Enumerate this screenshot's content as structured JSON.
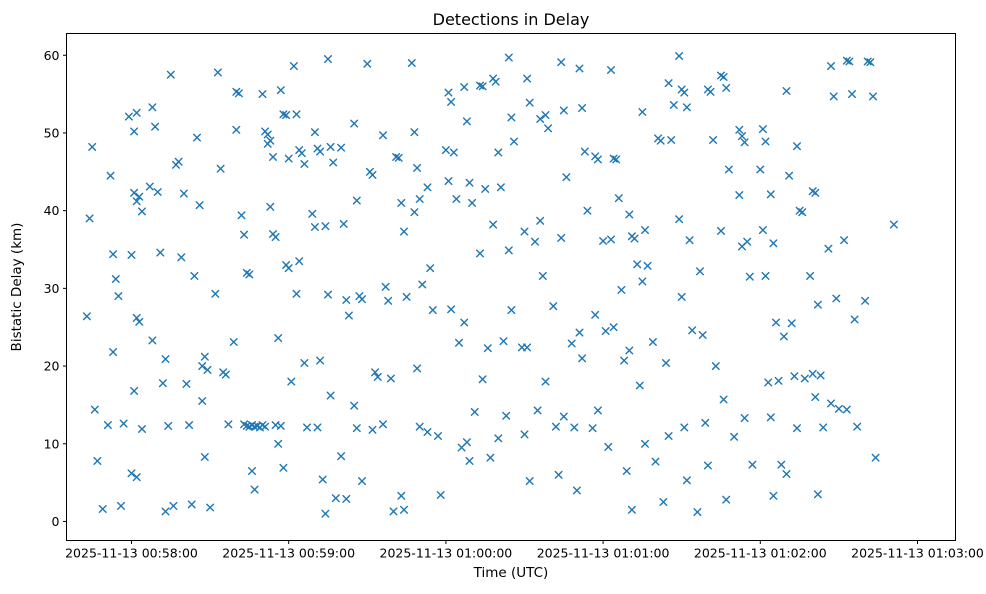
{
  "chart_data": {
    "type": "scatter",
    "title": "Detections in Delay",
    "xlabel": "Time (UTC)",
    "ylabel": "Bistatic Delay (km)",
    "marker": "x",
    "marker_color": "#1f77b4",
    "grid": false,
    "legend": "none",
    "x_unit": "seconds after 2025-11-13 00:58:00 UTC",
    "x_range_seconds": [
      -24.8,
      314.5
    ],
    "y_range": [
      -2.45,
      62.8
    ],
    "x_ticks": [
      {
        "t": 0,
        "label": "2025-11-13 00:58:00"
      },
      {
        "t": 60,
        "label": "2025-11-13 00:59:00"
      },
      {
        "t": 120,
        "label": "2025-11-13 01:00:00"
      },
      {
        "t": 180,
        "label": "2025-11-13 01:01:00"
      },
      {
        "t": 240,
        "label": "2025-11-13 01:02:00"
      },
      {
        "t": 300,
        "label": "2025-11-13 01:03:00"
      }
    ],
    "y_ticks": [
      0,
      10,
      20,
      30,
      40,
      50,
      60
    ],
    "points": [
      [
        -15,
        48.2
      ],
      [
        -16,
        39.0
      ],
      [
        -17,
        26.4
      ],
      [
        -14,
        14.4
      ],
      [
        -13,
        7.8
      ],
      [
        -11,
        1.6
      ],
      [
        -8,
        44.5
      ],
      [
        -7,
        34.4
      ],
      [
        -6,
        31.2
      ],
      [
        -5,
        29.0
      ],
      [
        -7,
        21.8
      ],
      [
        -9,
        12.4
      ],
      [
        -3,
        12.6
      ],
      [
        -4,
        2.0
      ],
      [
        -1,
        52.1
      ],
      [
        1,
        50.2
      ],
      [
        2,
        52.6
      ],
      [
        1,
        42.3
      ],
      [
        3,
        41.8
      ],
      [
        2,
        41.2
      ],
      [
        4,
        39.9
      ],
      [
        0,
        34.3
      ],
      [
        2,
        26.2
      ],
      [
        3,
        25.7
      ],
      [
        1,
        16.8
      ],
      [
        4,
        11.9
      ],
      [
        0,
        6.2
      ],
      [
        2,
        5.7
      ],
      [
        8,
        53.3
      ],
      [
        9,
        50.8
      ],
      [
        7,
        43.1
      ],
      [
        10,
        42.4
      ],
      [
        8,
        23.3
      ],
      [
        11,
        34.6
      ],
      [
        13,
        20.9
      ],
      [
        12,
        17.8
      ],
      [
        14,
        12.3
      ],
      [
        13,
        1.3
      ],
      [
        16,
        2.0
      ],
      [
        15,
        57.5
      ],
      [
        17,
        45.9
      ],
      [
        18,
        46.3
      ],
      [
        20,
        42.2
      ],
      [
        19,
        34.0
      ],
      [
        21,
        17.7
      ],
      [
        22,
        12.4
      ],
      [
        23,
        2.2
      ],
      [
        25,
        49.4
      ],
      [
        26,
        40.7
      ],
      [
        24,
        31.6
      ],
      [
        27,
        20.0
      ],
      [
        28,
        21.2
      ],
      [
        29,
        19.5
      ],
      [
        27,
        15.5
      ],
      [
        28,
        8.3
      ],
      [
        30,
        1.8
      ],
      [
        33,
        57.8
      ],
      [
        34,
        45.4
      ],
      [
        32,
        29.3
      ],
      [
        35,
        19.2
      ],
      [
        36,
        18.9
      ],
      [
        37,
        12.5
      ],
      [
        39,
        23.1
      ],
      [
        40,
        55.3
      ],
      [
        41,
        55.1
      ],
      [
        40,
        50.4
      ],
      [
        42,
        39.4
      ],
      [
        43,
        36.9
      ],
      [
        44,
        32.0
      ],
      [
        45,
        31.8
      ],
      [
        43,
        12.5
      ],
      [
        44,
        12.3
      ],
      [
        45,
        12.2
      ],
      [
        46,
        12.4
      ],
      [
        47,
        12.2
      ],
      [
        48,
        12.3
      ],
      [
        49,
        12.1
      ],
      [
        50,
        12.4
      ],
      [
        51,
        12.2
      ],
      [
        46,
        6.5
      ],
      [
        47,
        4.1
      ],
      [
        50,
        55.0
      ],
      [
        51,
        50.2
      ],
      [
        52,
        49.8
      ],
      [
        53,
        49.0
      ],
      [
        52,
        48.6
      ],
      [
        54,
        46.9
      ],
      [
        53,
        40.5
      ],
      [
        54,
        37.0
      ],
      [
        55,
        36.6
      ],
      [
        56,
        23.6
      ],
      [
        55,
        12.4
      ],
      [
        57,
        12.3
      ],
      [
        56,
        10.0
      ],
      [
        58,
        6.9
      ],
      [
        57,
        55.5
      ],
      [
        58,
        52.4
      ],
      [
        59,
        52.3
      ],
      [
        60,
        46.7
      ],
      [
        59,
        33.0
      ],
      [
        60,
        32.6
      ],
      [
        61,
        18.0
      ],
      [
        62,
        58.6
      ],
      [
        63,
        52.4
      ],
      [
        64,
        47.8
      ],
      [
        65,
        47.4
      ],
      [
        66,
        46.0
      ],
      [
        64,
        33.5
      ],
      [
        63,
        29.3
      ],
      [
        66,
        20.4
      ],
      [
        67,
        12.1
      ],
      [
        70,
        50.1
      ],
      [
        71,
        48.0
      ],
      [
        72,
        47.6
      ],
      [
        69,
        39.6
      ],
      [
        70,
        37.9
      ],
      [
        72,
        20.7
      ],
      [
        71,
        12.1
      ],
      [
        73,
        5.4
      ],
      [
        75,
        59.5
      ],
      [
        76,
        48.2
      ],
      [
        77,
        46.2
      ],
      [
        74,
        38.0
      ],
      [
        75,
        29.2
      ],
      [
        76,
        16.2
      ],
      [
        74,
        1.0
      ],
      [
        78,
        3.0
      ],
      [
        80,
        48.1
      ],
      [
        81,
        38.3
      ],
      [
        82,
        28.5
      ],
      [
        83,
        26.5
      ],
      [
        80,
        8.4
      ],
      [
        82,
        2.9
      ],
      [
        85,
        51.2
      ],
      [
        86,
        41.3
      ],
      [
        87,
        29.0
      ],
      [
        88,
        28.6
      ],
      [
        85,
        14.9
      ],
      [
        86,
        12.0
      ],
      [
        88,
        5.2
      ],
      [
        90,
        58.9
      ],
      [
        91,
        45.0
      ],
      [
        92,
        44.6
      ],
      [
        93,
        19.2
      ],
      [
        94,
        18.6
      ],
      [
        92,
        11.8
      ],
      [
        96,
        49.7
      ],
      [
        97,
        30.2
      ],
      [
        98,
        28.4
      ],
      [
        99,
        18.4
      ],
      [
        96,
        12.5
      ],
      [
        100,
        1.3
      ],
      [
        101,
        46.9
      ],
      [
        102,
        46.8
      ],
      [
        103,
        41.0
      ],
      [
        104,
        37.3
      ],
      [
        105,
        28.9
      ],
      [
        103,
        3.3
      ],
      [
        104,
        1.5
      ],
      [
        107,
        59.0
      ],
      [
        108,
        50.1
      ],
      [
        109,
        45.5
      ],
      [
        110,
        41.5
      ],
      [
        108,
        39.8
      ],
      [
        111,
        30.5
      ],
      [
        109,
        19.7
      ],
      [
        110,
        12.2
      ],
      [
        113,
        43.0
      ],
      [
        114,
        32.6
      ],
      [
        115,
        27.2
      ],
      [
        113,
        11.5
      ],
      [
        117,
        11.0
      ],
      [
        118,
        3.4
      ],
      [
        121,
        55.2
      ],
      [
        122,
        54.0
      ],
      [
        120,
        47.8
      ],
      [
        123,
        47.5
      ],
      [
        121,
        43.8
      ],
      [
        124,
        41.5
      ],
      [
        122,
        27.3
      ],
      [
        125,
        23.0
      ],
      [
        126,
        9.5
      ],
      [
        127,
        55.9
      ],
      [
        128,
        51.5
      ],
      [
        129,
        43.6
      ],
      [
        130,
        41.0
      ],
      [
        127,
        25.6
      ],
      [
        131,
        14.1
      ],
      [
        128,
        10.2
      ],
      [
        129,
        7.8
      ],
      [
        133,
        56.1
      ],
      [
        134,
        56.0
      ],
      [
        135,
        42.8
      ],
      [
        133,
        34.5
      ],
      [
        136,
        22.3
      ],
      [
        134,
        18.3
      ],
      [
        137,
        8.2
      ],
      [
        138,
        57.0
      ],
      [
        139,
        56.6
      ],
      [
        140,
        47.5
      ],
      [
        141,
        43.0
      ],
      [
        138,
        38.2
      ],
      [
        142,
        23.2
      ],
      [
        143,
        13.6
      ],
      [
        140,
        10.7
      ],
      [
        144,
        59.7
      ],
      [
        145,
        52.0
      ],
      [
        146,
        48.9
      ],
      [
        144,
        34.9
      ],
      [
        145,
        27.2
      ],
      [
        149,
        22.4
      ],
      [
        150,
        11.2
      ],
      [
        151,
        57.0
      ],
      [
        152,
        53.9
      ],
      [
        150,
        37.3
      ],
      [
        154,
        36.0
      ],
      [
        151,
        22.4
      ],
      [
        155,
        14.3
      ],
      [
        152,
        5.2
      ],
      [
        156,
        51.8
      ],
      [
        158,
        52.3
      ],
      [
        159,
        50.6
      ],
      [
        156,
        38.7
      ],
      [
        157,
        31.6
      ],
      [
        161,
        27.7
      ],
      [
        158,
        18.0
      ],
      [
        162,
        12.2
      ],
      [
        163,
        6.0
      ],
      [
        164,
        59.1
      ],
      [
        165,
        52.9
      ],
      [
        166,
        44.3
      ],
      [
        164,
        36.5
      ],
      [
        168,
        22.9
      ],
      [
        165,
        13.5
      ],
      [
        169,
        12.1
      ],
      [
        170,
        4.0
      ],
      [
        171,
        58.3
      ],
      [
        172,
        53.2
      ],
      [
        173,
        47.6
      ],
      [
        174,
        40.0
      ],
      [
        171,
        24.3
      ],
      [
        172,
        21.0
      ],
      [
        176,
        12.0
      ],
      [
        177,
        47.0
      ],
      [
        178,
        46.6
      ],
      [
        180,
        36.1
      ],
      [
        177,
        26.6
      ],
      [
        181,
        24.5
      ],
      [
        178,
        14.3
      ],
      [
        182,
        9.6
      ],
      [
        183,
        58.1
      ],
      [
        184,
        46.7
      ],
      [
        185,
        46.6
      ],
      [
        186,
        41.6
      ],
      [
        183,
        36.3
      ],
      [
        187,
        29.8
      ],
      [
        184,
        25.0
      ],
      [
        188,
        20.7
      ],
      [
        189,
        6.5
      ],
      [
        190,
        39.5
      ],
      [
        191,
        36.7
      ],
      [
        192,
        36.4
      ],
      [
        193,
        33.1
      ],
      [
        190,
        22.0
      ],
      [
        194,
        17.5
      ],
      [
        191,
        1.5
      ],
      [
        195,
        52.7
      ],
      [
        196,
        37.5
      ],
      [
        197,
        32.9
      ],
      [
        195,
        30.9
      ],
      [
        199,
        23.1
      ],
      [
        196,
        10.0
      ],
      [
        200,
        7.7
      ],
      [
        201,
        49.3
      ],
      [
        202,
        49.0
      ],
      [
        203,
        2.5
      ],
      [
        204,
        20.4
      ],
      [
        205,
        56.4
      ],
      [
        206,
        49.1
      ],
      [
        207,
        53.6
      ],
      [
        205,
        11.0
      ],
      [
        209,
        59.9
      ],
      [
        210,
        55.6
      ],
      [
        211,
        55.2
      ],
      [
        212,
        53.3
      ],
      [
        209,
        38.9
      ],
      [
        213,
        36.2
      ],
      [
        210,
        28.9
      ],
      [
        214,
        24.6
      ],
      [
        211,
        12.1
      ],
      [
        212,
        5.3
      ],
      [
        216,
        1.2
      ],
      [
        217,
        32.2
      ],
      [
        218,
        24.0
      ],
      [
        219,
        12.7
      ],
      [
        220,
        55.6
      ],
      [
        221,
        55.3
      ],
      [
        222,
        49.1
      ],
      [
        223,
        20.0
      ],
      [
        220,
        7.2
      ],
      [
        225,
        57.4
      ],
      [
        226,
        57.2
      ],
      [
        227,
        55.8
      ],
      [
        228,
        45.3
      ],
      [
        225,
        37.4
      ],
      [
        226,
        15.7
      ],
      [
        230,
        10.9
      ],
      [
        227,
        2.8
      ],
      [
        232,
        50.4
      ],
      [
        233,
        49.6
      ],
      [
        234,
        48.8
      ],
      [
        232,
        42.0
      ],
      [
        235,
        36.0
      ],
      [
        233,
        35.4
      ],
      [
        236,
        31.5
      ],
      [
        234,
        13.3
      ],
      [
        237,
        7.3
      ],
      [
        241,
        50.5
      ],
      [
        242,
        48.9
      ],
      [
        240,
        45.3
      ],
      [
        244,
        42.1
      ],
      [
        241,
        37.5
      ],
      [
        245,
        35.8
      ],
      [
        242,
        31.6
      ],
      [
        246,
        25.6
      ],
      [
        243,
        17.9
      ],
      [
        247,
        18.1
      ],
      [
        244,
        13.4
      ],
      [
        248,
        7.3
      ],
      [
        245,
        3.3
      ],
      [
        250,
        55.4
      ],
      [
        251,
        44.5
      ],
      [
        249,
        23.8
      ],
      [
        252,
        25.5
      ],
      [
        250,
        6.1
      ],
      [
        254,
        48.3
      ],
      [
        255,
        40.0
      ],
      [
        256,
        39.8
      ],
      [
        253,
        18.7
      ],
      [
        257,
        18.4
      ],
      [
        254,
        12.0
      ],
      [
        260,
        42.5
      ],
      [
        261,
        42.3
      ],
      [
        259,
        31.6
      ],
      [
        262,
        27.9
      ],
      [
        260,
        19.0
      ],
      [
        263,
        18.8
      ],
      [
        261,
        16.0
      ],
      [
        264,
        12.1
      ],
      [
        262,
        3.5
      ],
      [
        267,
        58.6
      ],
      [
        268,
        54.7
      ],
      [
        266,
        35.1
      ],
      [
        269,
        28.7
      ],
      [
        267,
        15.2
      ],
      [
        270,
        14.5
      ],
      [
        273,
        59.3
      ],
      [
        274,
        59.2
      ],
      [
        275,
        55.0
      ],
      [
        272,
        36.2
      ],
      [
        276,
        26.0
      ],
      [
        273,
        14.4
      ],
      [
        277,
        12.2
      ],
      [
        281,
        59.2
      ],
      [
        282,
        59.1
      ],
      [
        283,
        54.7
      ],
      [
        280,
        28.4
      ],
      [
        284,
        8.2
      ],
      [
        291,
        38.2
      ]
    ]
  }
}
